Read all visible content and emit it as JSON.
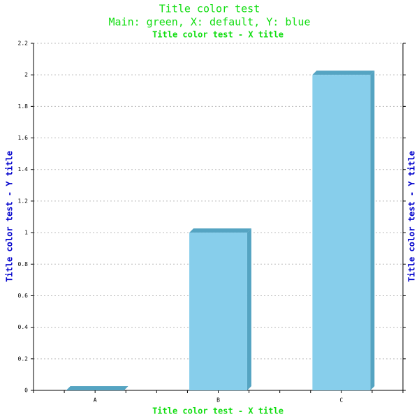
{
  "chart_data": {
    "type": "bar",
    "title": "Title color test",
    "subtitle": "Main: green, X: default, Y: blue",
    "x_title": "Title color test - X title",
    "y_title": "Title color test - Y title",
    "categories": [
      "A",
      "B",
      "C"
    ],
    "values": [
      0,
      1,
      2
    ],
    "color": "#87ceeb",
    "side_color": "#55a4c2",
    "ylim": [
      0,
      2.2
    ],
    "yticks": [
      0,
      0.2,
      0.4,
      0.6,
      0.8,
      1,
      1.2,
      1.4,
      1.6,
      1.8,
      2,
      2.2
    ],
    "grid": true
  }
}
